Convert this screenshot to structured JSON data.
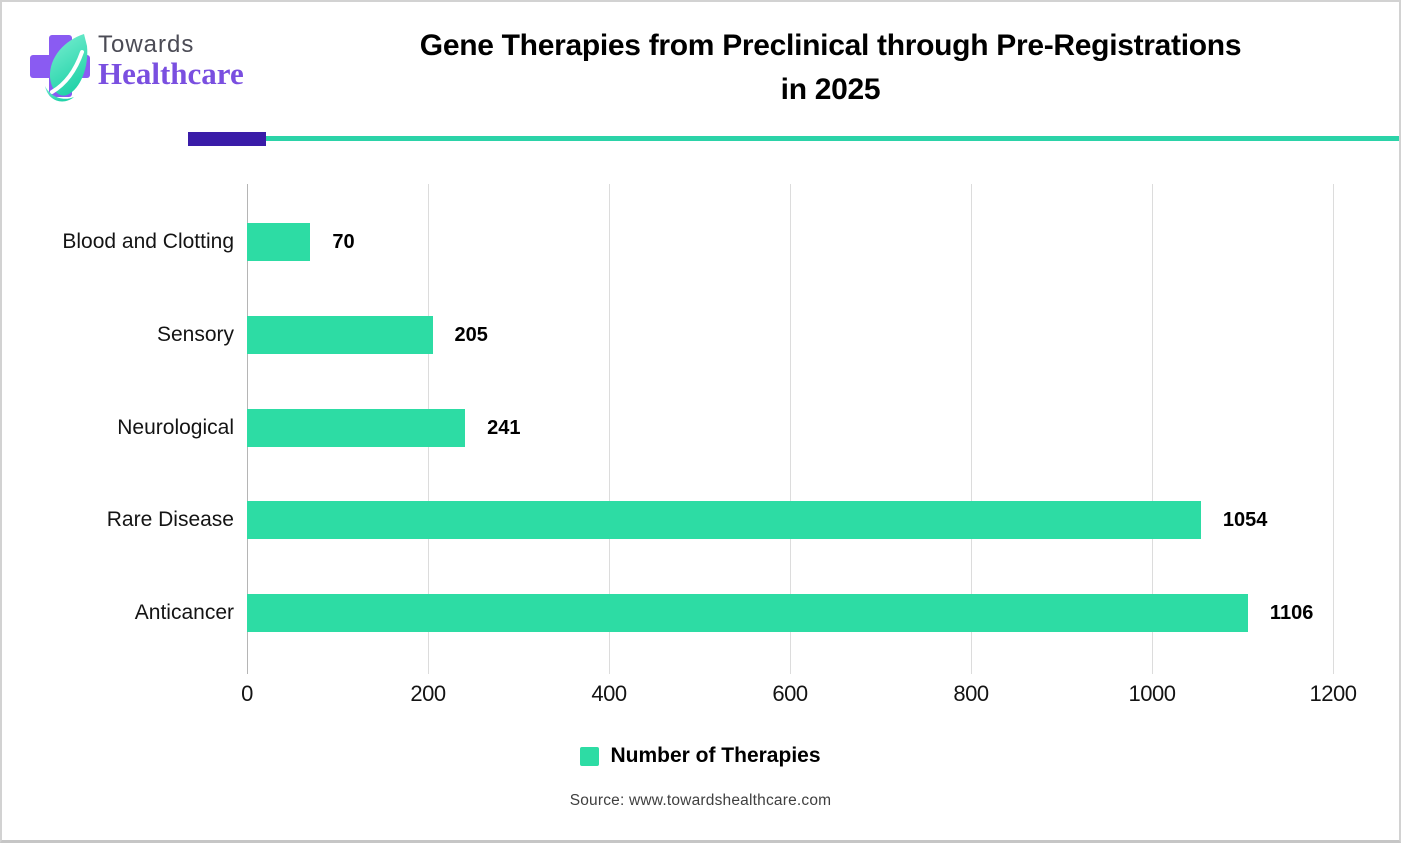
{
  "header": {
    "logo": {
      "towards": "Towards",
      "healthcare": "Healthcare"
    },
    "title_line1": "Gene Therapies from Preclinical through Pre-Registrations",
    "title_line2": "in 2025"
  },
  "chart_data": {
    "type": "bar",
    "orientation": "horizontal",
    "title": "Gene Therapies from Preclinical through Pre-Registrations in 2025",
    "categories": [
      "Blood and Clotting",
      "Sensory",
      "Neurological",
      "Rare Disease",
      "Anticancer"
    ],
    "values": [
      70,
      205,
      241,
      1054,
      1106
    ],
    "series_name": "Number of Therapies",
    "x_ticks": [
      0,
      200,
      400,
      600,
      800,
      1000,
      1200
    ],
    "xlim": [
      0,
      1280
    ],
    "xlabel": "",
    "ylabel": "",
    "grid": true,
    "data_labels": true,
    "legend_position": "bottom",
    "bar_color": "#2DDCA4"
  },
  "legend": {
    "label": "Number of Therapies"
  },
  "source": {
    "text": "Source: www.towardshealthcare.com"
  },
  "colors": {
    "bar": "#2DDCA4",
    "rule_purple": "#3A1CA8",
    "rule_teal": "#2BD3A8",
    "logo_cross_purple": "#8A5BF2",
    "logo_leaf_light": "#7CEFD2",
    "logo_leaf_dark": "#23D3A9",
    "logo_healthcare_text": "#7A4FE0",
    "logo_towards_text": "#4B4B55",
    "gridline": "#DCDCDC",
    "axis_line": "#B5B5B5",
    "title_text": "#000000",
    "source_text": "#3F3F3F"
  }
}
